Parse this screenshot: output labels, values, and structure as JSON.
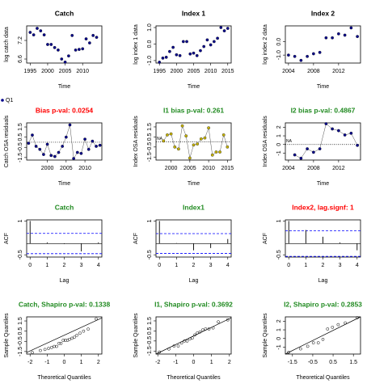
{
  "legend": {
    "label": "Q1",
    "color": "#00008b"
  },
  "chart_data": [
    {
      "type": "scatter",
      "title": "Catch",
      "title_color": "#000000",
      "x_label": "Time",
      "y_label": "log catch data",
      "color": "#00008b",
      "x": [
        1995,
        1996,
        1997,
        1998,
        1999,
        2000,
        2001,
        2002,
        2003,
        2004,
        2005,
        2006,
        2007,
        2008,
        2009,
        2010,
        2011,
        2012,
        2013,
        2014
      ],
      "values": [
        7.46,
        7.38,
        7.59,
        7.51,
        7.38,
        7.07,
        7.07,
        6.97,
        6.89,
        6.6,
        6.5,
        6.7,
        7.36,
        6.89,
        6.91,
        6.93,
        7.25,
        7.12,
        7.36,
        7.3
      ],
      "xlim": [
        1994,
        2015.5
      ],
      "xticks": [
        1995,
        2000,
        2005,
        2010
      ],
      "ylim": [
        6.47,
        7.67
      ],
      "yticks": [
        6.6,
        7.2
      ]
    },
    {
      "type": "scatter",
      "title": "Index 1",
      "title_color": "#000000",
      "x_label": "Time",
      "y_label": "log index 1 data",
      "color": "#00008b",
      "x": [
        1995,
        1996,
        1997,
        1998,
        1999,
        2000,
        2001,
        2002,
        2003,
        2004,
        2005,
        2006,
        2007,
        2008,
        2009,
        2010,
        2011,
        2012,
        2013,
        2014,
        2015
      ],
      "values": [
        -1.1,
        -0.85,
        -0.8,
        -0.45,
        -0.2,
        -0.65,
        -0.7,
        0.15,
        0.15,
        -0.6,
        -0.55,
        -0.7,
        -0.4,
        -0.15,
        0.25,
        -0.05,
        0.15,
        0.35,
        1.0,
        0.8,
        0.95
      ],
      "xlim": [
        1994,
        2016
      ],
      "xticks": [
        1995,
        2000,
        2005,
        2010,
        2015
      ],
      "ylim": [
        -1.15,
        1.1
      ],
      "yticks": [
        {
          "value": -1.0,
          "label": "-1.0"
        },
        {
          "value": 0,
          "label": "0.0"
        },
        {
          "value": 1.0,
          "label": "1.0"
        }
      ]
    },
    {
      "type": "scatter",
      "title": "Index 2",
      "title_color": "#000000",
      "x_label": "Time",
      "y_label": "log index 2 data",
      "color": "#00008b",
      "x": [
        2004,
        2005,
        2006,
        2007,
        2008,
        2009,
        2010,
        2011,
        2012,
        2013,
        2014,
        2015
      ],
      "values": [
        -1.0,
        -1.1,
        -1.4,
        -1.1,
        -0.9,
        -0.8,
        0.3,
        0.3,
        0.6,
        0.5,
        1.05,
        0.4
      ],
      "xlim": [
        2003.5,
        2015.5
      ],
      "xticks": [
        2004,
        2008,
        2012
      ],
      "ylim": [
        -1.6,
        1.2
      ],
      "yticks": [
        {
          "value": -1.0,
          "label": "-1.0"
        },
        {
          "value": 0,
          "label": "0.0"
        }
      ]
    },
    {
      "type": "line",
      "title": "Bias p-val: 0.0254",
      "title_color": "#ff0000",
      "x_label": "Time",
      "y_label": "Catch OSA residuals",
      "color": "#00008b",
      "zero_line": true,
      "x": [
        1995,
        1996,
        1997,
        1998,
        1999,
        2000,
        2001,
        2002,
        2003,
        2004,
        2005,
        2006,
        2007,
        2008,
        2009,
        2010,
        2011,
        2012,
        2013,
        2014
      ],
      "values": [
        -0.1,
        0.7,
        -0.4,
        -0.7,
        -1.2,
        -0.2,
        -1.3,
        -1.4,
        -1.0,
        -0.4,
        0.5,
        1.7,
        -1.6,
        -1.0,
        -1.1,
        0.3,
        -0.7,
        0.1,
        -0.4,
        -0.3
      ],
      "xlim": [
        1994.5,
        2014.5
      ],
      "xticks": [
        2000,
        2005,
        2010
      ],
      "ylim": [
        -1.75,
        1.9
      ],
      "yticks": [
        -1.5,
        -0.5,
        0.5,
        1.5
      ]
    },
    {
      "type": "line",
      "title": "I1 bias p-val: 0.261",
      "title_color": "#228b22",
      "x_label": "Time",
      "y_label": "Index OSA residuals",
      "color": "#c8b400",
      "zero_line": true,
      "annotation": "NA",
      "x": [
        1998,
        1999,
        2000,
        2001,
        2002,
        2003,
        2004,
        2005,
        2006,
        2007,
        2008,
        2009,
        2010,
        2011,
        2012,
        2013,
        2014,
        2015
      ],
      "values": [
        0.1,
        0.7,
        0.8,
        -0.5,
        -0.7,
        1.6,
        0.6,
        -1.6,
        -0.3,
        -0.2,
        0.3,
        0.4,
        1.4,
        -1.3,
        -1.0,
        -1.0,
        0.7,
        -0.5
      ],
      "xlim": [
        1996,
        2016
      ],
      "xticks": [
        2000,
        2005,
        2010,
        2015
      ],
      "ylim": [
        -1.8,
        1.9
      ],
      "yticks": [
        -1.5,
        -0.5,
        0.5,
        1.5
      ]
    },
    {
      "type": "line",
      "title": "I2 bias p-val: 0.4867",
      "title_color": "#228b22",
      "x_label": "Time",
      "y_label": "Index OSA residuals",
      "color": "#00008b",
      "zero_line": true,
      "annotation": "NA",
      "x": [
        2005,
        2006,
        2007,
        2008,
        2009,
        2010,
        2011,
        2012,
        2013,
        2014,
        2015
      ],
      "values": [
        -1.2,
        -1.6,
        -0.5,
        -0.9,
        -0.5,
        2.4,
        1.8,
        1.6,
        1.1,
        1.3,
        -0.1
      ],
      "xlim": [
        2003.5,
        2015.5
      ],
      "xticks": [
        2004,
        2008,
        2012
      ],
      "ylim": [
        -1.8,
        2.5
      ],
      "yticks": [
        -1,
        0,
        1,
        2
      ]
    },
    {
      "type": "acf",
      "title": "Catch",
      "title_color": "#228b22",
      "x_label": "Lag",
      "y_label": "ACF",
      "color": "#000000",
      "conf_color": "#0000ff",
      "x": [
        0,
        1,
        2,
        3,
        4
      ],
      "values": [
        1.0,
        0.05,
        -0.02,
        -0.35,
        0.05
      ],
      "conf_lines": [
        0.45,
        -0.45
      ],
      "xlim": [
        -0.2,
        4.2
      ],
      "xticks": [
        0,
        1,
        2,
        3,
        4
      ],
      "ylim": [
        -0.6,
        1.05
      ],
      "yticks": [
        -0.5,
        1
      ]
    },
    {
      "type": "acf",
      "title": "Index1",
      "title_color": "#228b22",
      "x_label": "Lag",
      "y_label": "ACF",
      "color": "#000000",
      "conf_color": "#0000ff",
      "x": [
        0,
        1,
        2,
        3,
        4
      ],
      "values": [
        1.0,
        0.02,
        -0.3,
        -0.2,
        0.2
      ],
      "conf_lines": [
        0.44,
        -0.44
      ],
      "xlim": [
        -0.2,
        4.2
      ],
      "xticks": [
        0,
        1,
        2,
        3,
        4
      ],
      "ylim": [
        -0.6,
        1.05
      ],
      "yticks": [
        -0.5,
        1
      ]
    },
    {
      "type": "acf",
      "title": "Index2, lag.signf: 1",
      "title_color": "#ff0000",
      "x_label": "Lag",
      "y_label": "ACF",
      "color": "#000000",
      "conf_color": "#0000ff",
      "x": [
        0,
        1,
        2,
        3,
        4
      ],
      "values": [
        1.0,
        0.6,
        0.3,
        0.05,
        -0.3
      ],
      "conf_lines": [
        0.57,
        -0.57
      ],
      "xlim": [
        -0.2,
        4.2
      ],
      "xticks": [
        0,
        1,
        2,
        3,
        4
      ],
      "ylim": [
        -0.6,
        1.05
      ],
      "yticks": [
        -0.5,
        1
      ]
    },
    {
      "type": "qq",
      "title": "Catch, Shapiro p-val: 0.1338",
      "title_color": "#228b22",
      "x_label": "Theoretical Quantiles",
      "y_label": "Sample Quantiles",
      "color": "#000000",
      "x": [
        -1.87,
        -1.4,
        -1.13,
        -0.92,
        -0.74,
        -0.59,
        -0.45,
        -0.31,
        -0.19,
        -0.06,
        0.06,
        0.19,
        0.31,
        0.45,
        0.59,
        0.74,
        0.92,
        1.13,
        1.4,
        1.87
      ],
      "values": [
        -1.6,
        -1.4,
        -1.3,
        -1.2,
        -1.1,
        -1.0,
        -1.0,
        -0.7,
        -0.7,
        -0.4,
        -0.4,
        -0.4,
        -0.3,
        -0.2,
        -0.1,
        0.1,
        0.3,
        0.5,
        0.7,
        1.7
      ],
      "ref_line": {
        "x": [
          -2.2,
          2.2
        ],
        "y": [
          -1.6,
          1.8
        ]
      },
      "xlim": [
        -2.2,
        2.2
      ],
      "xticks": [
        -2,
        -1,
        0,
        1,
        2
      ],
      "ylim": [
        -1.75,
        1.9
      ],
      "yticks": [
        -1.5,
        -0.5,
        0.5,
        1.5
      ]
    },
    {
      "type": "qq",
      "title": "I1, Shapiro p-val: 0.3692",
      "title_color": "#228b22",
      "x_label": "Theoretical Quantiles",
      "y_label": "Sample Quantiles",
      "color": "#000000",
      "x": [
        -1.91,
        -1.38,
        -1.09,
        -0.86,
        -0.67,
        -0.51,
        -0.36,
        -0.21,
        -0.07,
        0.07,
        0.21,
        0.36,
        0.51,
        0.67,
        0.86,
        1.09,
        1.38,
        1.91
      ],
      "values": [
        -1.6,
        -1.3,
        -1.0,
        -1.0,
        -0.7,
        -0.5,
        -0.5,
        -0.3,
        -0.2,
        0.1,
        0.3,
        0.4,
        0.6,
        0.7,
        0.7,
        0.8,
        1.4,
        1.6
      ],
      "ref_line": {
        "x": [
          -2.1,
          2.1
        ],
        "y": [
          -1.8,
          1.8
        ]
      },
      "xlim": [
        -2.1,
        2.1
      ],
      "xticks": [
        -2,
        -1,
        0,
        1,
        2
      ],
      "ylim": [
        -1.8,
        1.9
      ],
      "yticks": [
        -1.5,
        -0.5,
        0.5,
        1.5
      ]
    },
    {
      "type": "qq",
      "title": "I2, Shapiro p-val: 0.2853",
      "title_color": "#228b22",
      "x_label": "Theoretical Quantiles",
      "y_label": "Sample Quantiles",
      "color": "#000000",
      "x": [
        -1.69,
        -1.1,
        -0.75,
        -0.47,
        -0.23,
        0,
        0.23,
        0.47,
        0.75,
        1.1,
        1.69
      ],
      "values": [
        -1.6,
        -1.2,
        -0.9,
        -0.5,
        -0.5,
        -0.1,
        1.1,
        1.3,
        1.6,
        1.8,
        2.4
      ],
      "ref_line": {
        "x": [
          -1.85,
          1.85
        ],
        "y": [
          -1.8,
          2.5
        ]
      },
      "xlim": [
        -1.85,
        1.85
      ],
      "xticks": [
        -1.5,
        -0.5,
        0.5,
        1.5
      ],
      "ylim": [
        -1.8,
        2.5
      ],
      "yticks": [
        -1,
        0,
        1,
        2
      ]
    }
  ]
}
